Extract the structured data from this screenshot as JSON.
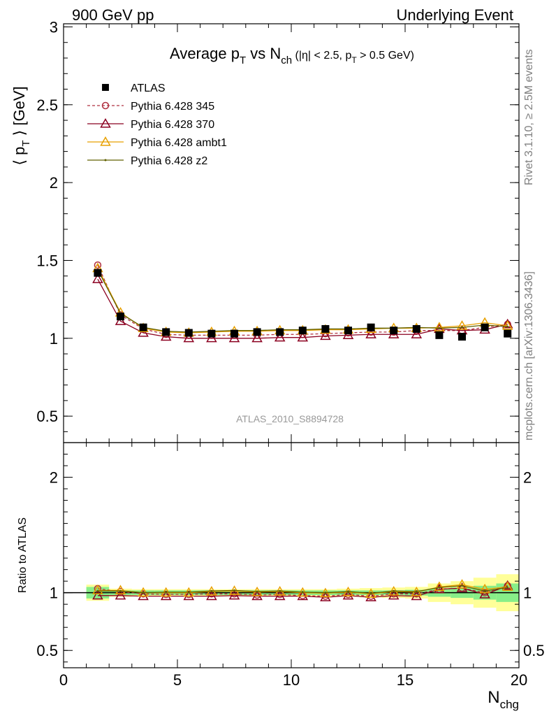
{
  "header": {
    "energy_label": "900 GeV pp",
    "process_label": "Underlying Event"
  },
  "side_labels": {
    "rivet": "Rivet 3.1.10, ≥ 2.5M events",
    "source": "mcplots.cern.ch [arXiv:1306.3436]"
  },
  "chart_data": [
    {
      "type": "line",
      "title_parts": [
        "Average p",
        "T",
        " vs N",
        "ch",
        " (|η| < 2.5, p",
        "T",
        " > 0.5 GeV)"
      ],
      "ylabel_parts": [
        "⟨ p",
        "T",
        " ⟩ [GeV]"
      ],
      "analysis_label": "ATLAS_2010_S8894728",
      "xlim": [
        0,
        20
      ],
      "ylim": [
        0.33,
        3.02
      ],
      "yticks": [
        0.5,
        1,
        1.5,
        2,
        2.5,
        3
      ],
      "yticklabels": [
        "0.5",
        "1",
        "1.5",
        "2",
        "2.5",
        "3"
      ],
      "legend_position": "top-left",
      "x": [
        1.5,
        2.5,
        3.5,
        4.5,
        5.5,
        6.5,
        7.5,
        8.5,
        9.5,
        10.5,
        11.5,
        12.5,
        13.5,
        14.5,
        15.5,
        16.5,
        17.5,
        18.5,
        19.5
      ],
      "series": [
        {
          "name": "ATLAS",
          "style": "data",
          "color": "#000000",
          "values": [
            1.42,
            1.14,
            1.07,
            1.04,
            1.035,
            1.03,
            1.03,
            1.04,
            1.04,
            1.05,
            1.06,
            1.05,
            1.07,
            1.05,
            1.06,
            1.02,
            1.01,
            1.07,
            1.03
          ]
        },
        {
          "name": "Pythia 6.428 345",
          "style": "circle-dashed",
          "color": "#b03040",
          "values": [
            1.47,
            1.15,
            1.06,
            1.025,
            1.02,
            1.02,
            1.02,
            1.02,
            1.025,
            1.025,
            1.03,
            1.035,
            1.04,
            1.04,
            1.05,
            1.05,
            1.05,
            1.07,
            1.09
          ]
        },
        {
          "name": "Pythia 6.428 370",
          "style": "triangle",
          "color": "#8b0020",
          "values": [
            1.38,
            1.11,
            1.035,
            1.01,
            1.0,
            1.0,
            1.0,
            1.0,
            1.005,
            1.005,
            1.015,
            1.02,
            1.025,
            1.025,
            1.025,
            1.06,
            1.05,
            1.055,
            1.09
          ]
        },
        {
          "name": "Pythia 6.428 ambt1",
          "style": "triangle",
          "color": "#e8a000",
          "values": [
            1.45,
            1.165,
            1.065,
            1.04,
            1.035,
            1.04,
            1.045,
            1.045,
            1.05,
            1.05,
            1.055,
            1.055,
            1.06,
            1.065,
            1.065,
            1.07,
            1.08,
            1.1,
            1.08
          ]
        },
        {
          "name": "Pythia 6.428 z2",
          "style": "dot",
          "color": "#606000",
          "values": [
            1.44,
            1.16,
            1.07,
            1.045,
            1.04,
            1.045,
            1.05,
            1.05,
            1.055,
            1.055,
            1.06,
            1.06,
            1.065,
            1.065,
            1.07,
            1.065,
            1.07,
            1.085,
            1.075
          ]
        }
      ]
    },
    {
      "type": "line",
      "ylabel": "Ratio to ATLAS",
      "xlabel_parts": [
        "N",
        "chg"
      ],
      "xlim": [
        0,
        20
      ],
      "ylim": [
        0.35,
        2.3
      ],
      "xticks": [
        0,
        5,
        10,
        15,
        20
      ],
      "xticklabels": [
        "0",
        "5",
        "10",
        "15",
        "20"
      ],
      "yticks": [
        0.5,
        1,
        2
      ],
      "yticklabels": [
        "0.5",
        "1",
        "2"
      ],
      "x": [
        1.5,
        2.5,
        3.5,
        4.5,
        5.5,
        6.5,
        7.5,
        8.5,
        9.5,
        10.5,
        11.5,
        12.5,
        13.5,
        14.5,
        15.5,
        16.5,
        17.5,
        18.5,
        19.5
      ],
      "band_inner": [
        0.05,
        0.02,
        0.02,
        0.02,
        0.02,
        0.02,
        0.02,
        0.02,
        0.02,
        0.02,
        0.02,
        0.02,
        0.02,
        0.02,
        0.025,
        0.035,
        0.045,
        0.06,
        0.08
      ],
      "band_outer": [
        0.07,
        0.035,
        0.03,
        0.03,
        0.03,
        0.03,
        0.03,
        0.03,
        0.03,
        0.03,
        0.03,
        0.035,
        0.04,
        0.045,
        0.05,
        0.08,
        0.1,
        0.13,
        0.16
      ],
      "series": [
        {
          "name": "Pythia 6.428 345",
          "style": "circle-dashed",
          "color": "#b03040",
          "values": [
            1.035,
            1.01,
            0.99,
            0.985,
            0.985,
            0.99,
            0.99,
            0.98,
            0.985,
            0.975,
            0.97,
            0.985,
            0.97,
            0.99,
            0.99,
            1.03,
            1.04,
            1.0,
            1.06
          ]
        },
        {
          "name": "Pythia 6.428 370",
          "style": "triangle",
          "color": "#8b0020",
          "values": [
            0.975,
            0.975,
            0.97,
            0.97,
            0.97,
            0.97,
            0.975,
            0.97,
            0.97,
            0.97,
            0.96,
            0.975,
            0.96,
            0.975,
            0.97,
            1.03,
            1.04,
            0.985,
            1.06
          ]
        },
        {
          "name": "Pythia 6.428 ambt1",
          "style": "triangle",
          "color": "#e8a000",
          "values": [
            1.02,
            1.02,
            1.0,
            1.0,
            1.0,
            1.01,
            1.015,
            1.005,
            1.01,
            1.0,
            0.995,
            1.005,
            0.99,
            1.01,
            1.005,
            1.05,
            1.07,
            1.03,
            1.05
          ]
        },
        {
          "name": "Pythia 6.428 z2",
          "style": "dot",
          "color": "#606000",
          "values": [
            1.015,
            1.015,
            1.0,
            1.005,
            1.005,
            1.015,
            1.02,
            1.01,
            1.015,
            1.005,
            1.0,
            1.01,
            0.995,
            1.015,
            1.01,
            1.045,
            1.06,
            1.015,
            1.045
          ]
        }
      ]
    }
  ]
}
